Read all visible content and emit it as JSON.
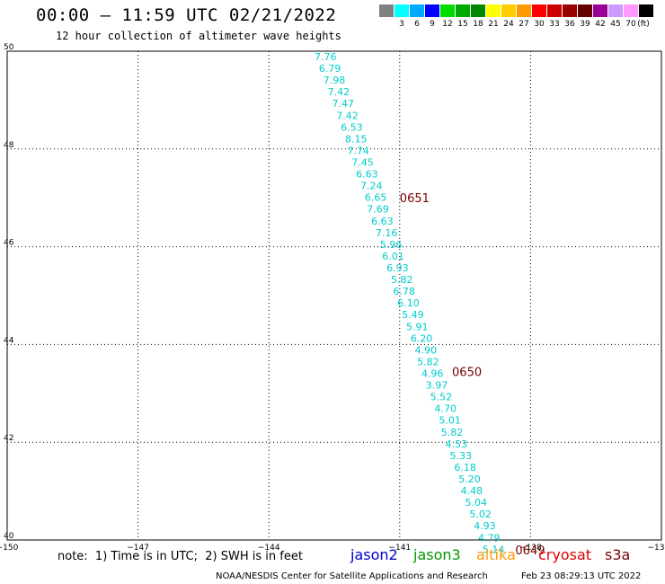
{
  "title": "00:00 – 11:59 UTC 02/21/2022",
  "subtitle": "12 hour collection of altimeter wave heights",
  "legend": {
    "labels": [
      "",
      "3",
      "6",
      "9",
      "12",
      "15",
      "18",
      "21",
      "24",
      "27",
      "30",
      "33",
      "36",
      "39",
      "42",
      "45",
      "70",
      "(ft)"
    ],
    "colors": [
      "#808080",
      "#00ffff",
      "#00aaff",
      "#0000ff",
      "#00dd00",
      "#00aa00",
      "#008800",
      "#ffff00",
      "#ffcc00",
      "#ff9900",
      "#ff0000",
      "#cc0000",
      "#990000",
      "#660000",
      "#990099",
      "#cc99ff",
      "#ff99ff",
      "#000000"
    ]
  },
  "map": {
    "lon_ticks": [
      "−150",
      "−147",
      "−144",
      "−141",
      "−138",
      "−13"
    ],
    "lat_ticks": [
      "50",
      "48",
      "46",
      "44",
      "42",
      "40"
    ],
    "lon_range": [
      -150,
      -135
    ],
    "lat_range": [
      40,
      50
    ]
  },
  "track": {
    "color": "#00cccc",
    "points": [
      {
        "lon": -142.7,
        "lat": 49.89,
        "swh": "7.76"
      },
      {
        "lon": -142.6,
        "lat": 49.65,
        "swh": "6.79"
      },
      {
        "lon": -142.5,
        "lat": 49.41,
        "swh": "7.98"
      },
      {
        "lon": -142.4,
        "lat": 49.17,
        "swh": "7.42"
      },
      {
        "lon": -142.3,
        "lat": 48.93,
        "swh": "7.47"
      },
      {
        "lon": -142.2,
        "lat": 48.69,
        "swh": "7.42"
      },
      {
        "lon": -142.1,
        "lat": 48.45,
        "swh": "6.53"
      },
      {
        "lon": -142.0,
        "lat": 48.21,
        "swh": "8.15"
      },
      {
        "lon": -141.95,
        "lat": 47.97,
        "swh": "7.74"
      },
      {
        "lon": -141.85,
        "lat": 47.73,
        "swh": "7.45"
      },
      {
        "lon": -141.75,
        "lat": 47.49,
        "swh": "6.63"
      },
      {
        "lon": -141.65,
        "lat": 47.25,
        "swh": "7.24"
      },
      {
        "lon": -141.55,
        "lat": 47.01,
        "swh": "6.65"
      },
      {
        "lon": -141.5,
        "lat": 46.77,
        "swh": "7.69"
      },
      {
        "lon": -141.4,
        "lat": 46.53,
        "swh": "6.63"
      },
      {
        "lon": -141.3,
        "lat": 46.29,
        "swh": "7.16"
      },
      {
        "lon": -141.2,
        "lat": 46.05,
        "swh": "5.96"
      },
      {
        "lon": -141.15,
        "lat": 45.81,
        "swh": "6.01"
      },
      {
        "lon": -141.05,
        "lat": 45.57,
        "swh": "6.93"
      },
      {
        "lon": -140.95,
        "lat": 45.33,
        "swh": "5.82"
      },
      {
        "lon": -140.9,
        "lat": 45.09,
        "swh": "6.78"
      },
      {
        "lon": -140.8,
        "lat": 44.85,
        "swh": "6.10"
      },
      {
        "lon": -140.7,
        "lat": 44.61,
        "swh": "5.49"
      },
      {
        "lon": -140.6,
        "lat": 44.37,
        "swh": "5.91"
      },
      {
        "lon": -140.5,
        "lat": 44.13,
        "swh": "6.20"
      },
      {
        "lon": -140.4,
        "lat": 43.89,
        "swh": "4.90"
      },
      {
        "lon": -140.35,
        "lat": 43.65,
        "swh": "5.82"
      },
      {
        "lon": -140.25,
        "lat": 43.41,
        "swh": "4.96"
      },
      {
        "lon": -140.15,
        "lat": 43.17,
        "swh": "3.97"
      },
      {
        "lon": -140.05,
        "lat": 42.93,
        "swh": "5.52"
      },
      {
        "lon": -139.95,
        "lat": 42.69,
        "swh": "4.70"
      },
      {
        "lon": -139.85,
        "lat": 42.45,
        "swh": "5.01"
      },
      {
        "lon": -139.8,
        "lat": 42.21,
        "swh": "5.82"
      },
      {
        "lon": -139.7,
        "lat": 41.97,
        "swh": "4.53"
      },
      {
        "lon": -139.6,
        "lat": 41.73,
        "swh": "5.33"
      },
      {
        "lon": -139.5,
        "lat": 41.49,
        "swh": "6.18"
      },
      {
        "lon": -139.4,
        "lat": 41.25,
        "swh": "5.20"
      },
      {
        "lon": -139.35,
        "lat": 41.01,
        "swh": "4.48"
      },
      {
        "lon": -139.25,
        "lat": 40.77,
        "swh": "5.04"
      },
      {
        "lon": -139.15,
        "lat": 40.53,
        "swh": "5.02"
      },
      {
        "lon": -139.05,
        "lat": 40.29,
        "swh": "4.93"
      },
      {
        "lon": -138.95,
        "lat": 40.05,
        "swh": "4.79"
      },
      {
        "lon": -138.85,
        "lat": 39.81,
        "swh": "5.14"
      }
    ],
    "time_labels": [
      {
        "text": "0651",
        "lon": -141.0,
        "lat": 47.0
      },
      {
        "text": "0650",
        "lon": -139.8,
        "lat": 43.45
      },
      {
        "text": "0649",
        "lon": -138.35,
        "lat": 39.8
      }
    ]
  },
  "note": "note:  1) Time is in UTC;  2) SWH is in feet",
  "satellites": [
    {
      "name": "jason2",
      "color": "#0000cc"
    },
    {
      "name": "jason3",
      "color": "#009900"
    },
    {
      "name": "altika",
      "color": "#ff9900"
    },
    {
      "name": "cryosat",
      "color": "#dd0000"
    },
    {
      "name": "s3a",
      "color": "#7a0000"
    }
  ],
  "credit": "NOAA/NESDIS Center for Satellite Applications and Research",
  "timestamp": "Feb 23 08:29:13 UTC 2022"
}
